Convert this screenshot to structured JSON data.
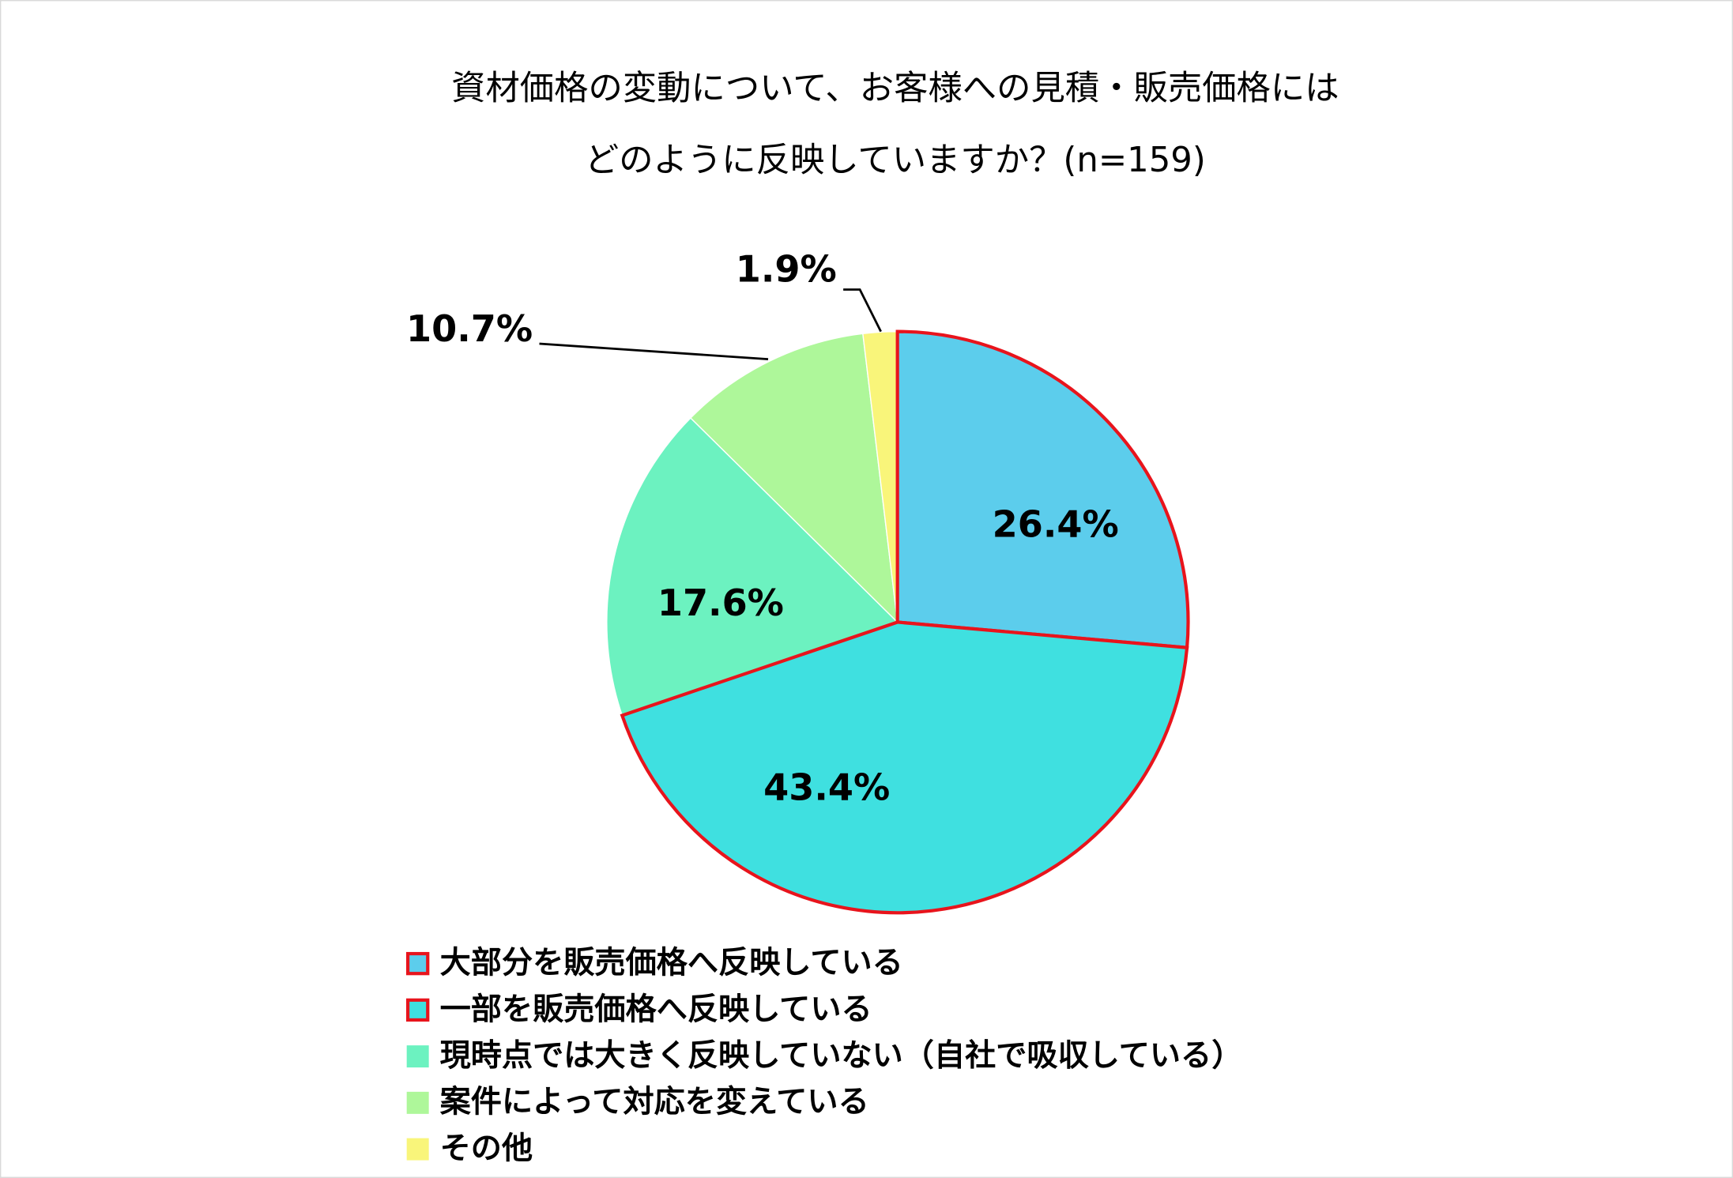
{
  "chart_data": {
    "type": "pie",
    "title": [
      "資材価格の変動について、お客様への見積・販売価格には",
      "どのように反映していますか？(n=159)"
    ],
    "categories": [
      "大部分を販売価格へ反映している",
      "一部を販売価格へ反映している",
      "現時点では大きく反映していない（自社で吸収している）",
      "案件によって対応を変えている",
      "その他"
    ],
    "values": [
      26.4,
      43.4,
      17.6,
      10.7,
      1.9
    ],
    "value_labels": [
      "26.4%",
      "43.4%",
      "17.6%",
      "10.7%",
      "1.9%"
    ],
    "colors": [
      "#5ccdec",
      "#3fe0e0",
      "#6cf2c0",
      "#aef79a",
      "#f9f57a"
    ],
    "edgecolors": [
      "#e8141c",
      "#e8141c",
      "none",
      "none",
      "none"
    ],
    "legend": "bottom"
  }
}
